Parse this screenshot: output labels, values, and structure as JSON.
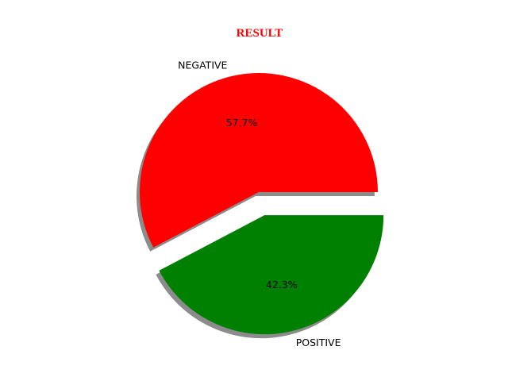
{
  "chart_data": {
    "type": "pie",
    "title": "RESULT",
    "title_color": "#ff0000",
    "slices": [
      {
        "label": "NEGATIVE",
        "value": 57.7,
        "pct_label": "57.7%",
        "color": "#ff0000",
        "explode": 0.0
      },
      {
        "label": "POSITIVE",
        "value": 42.3,
        "pct_label": "42.3%",
        "color": "#008000",
        "explode": 0.2
      }
    ],
    "start_angle_deg": 0,
    "direction": "counterclockwise",
    "shadow": true,
    "legend": "none"
  }
}
